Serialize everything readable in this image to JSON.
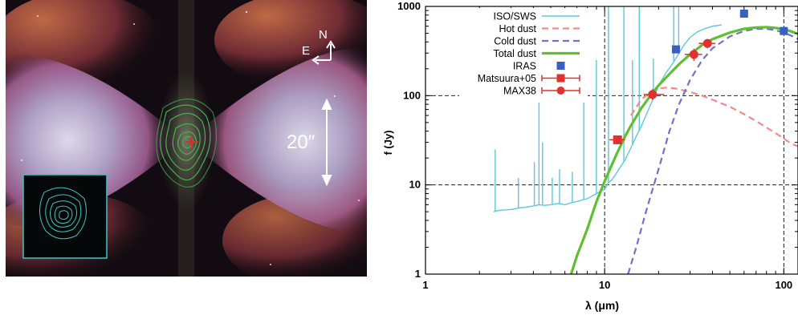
{
  "image_panel": {
    "compass_north": "N",
    "compass_east": "E",
    "scale_bar_label": "20″",
    "colors": {
      "contours": "#3fb64a",
      "inset_contours": "#3cc6c6",
      "center_marker": "#e02a2a"
    }
  },
  "chart_data": {
    "type": "scatter",
    "xlabel": "λ (μm)",
    "ylabel": "f (Jy)",
    "xscale": "log",
    "yscale": "log",
    "xlim": [
      1,
      120
    ],
    "ylim": [
      1,
      1000
    ],
    "xticks": [
      1,
      10,
      100
    ],
    "xtick_labels": [
      "1",
      "10",
      "100"
    ],
    "yticks": [
      1,
      10,
      100,
      1000
    ],
    "ytick_labels": [
      "1",
      "10",
      "100",
      "1000"
    ],
    "grid": true,
    "legend_position": "top-left",
    "series": [
      {
        "name": "ISO/SWS",
        "style": "line",
        "color": "#5bc8dc",
        "x": [
          2.4,
          2.6,
          3.0,
          3.3,
          3.6,
          4.0,
          4.3,
          4.6,
          5.0,
          5.5,
          6.0,
          6.5,
          7.0,
          7.5,
          8.0,
          8.5,
          9.0,
          9.5,
          10.0,
          10.5,
          11.0,
          11.5,
          12.0,
          13.0,
          14.0,
          15.0,
          16.0,
          17.0,
          18.0,
          19.0,
          20.0,
          22.0,
          24.0,
          26.0,
          28.0,
          30.0,
          33.0,
          36.0,
          40.0,
          45.0
        ],
        "y": [
          5.0,
          5.2,
          5.3,
          5.5,
          5.6,
          5.8,
          6.0,
          5.9,
          6.0,
          6.2,
          6.0,
          6.3,
          6.5,
          6.8,
          7.0,
          7.5,
          8.0,
          8.5,
          9.0,
          10.5,
          11.5,
          13.0,
          15.0,
          19.0,
          26.0,
          35.0,
          45.0,
          60.0,
          78.0,
          100.0,
          130.0,
          180.0,
          230.0,
          300.0,
          380.0,
          450.0,
          520.0,
          560.0,
          600.0,
          620.0
        ],
        "spikes": [
          {
            "x": 2.45,
            "y": 25
          },
          {
            "x": 3.3,
            "y": 12
          },
          {
            "x": 4.05,
            "y": 18
          },
          {
            "x": 4.3,
            "y": 150
          },
          {
            "x": 4.5,
            "y": 30
          },
          {
            "x": 5.1,
            "y": 12
          },
          {
            "x": 5.6,
            "y": 15
          },
          {
            "x": 6.6,
            "y": 14
          },
          {
            "x": 7.65,
            "y": 150
          },
          {
            "x": 8.99,
            "y": 250
          },
          {
            "x": 10.5,
            "y": 1000
          },
          {
            "x": 12.8,
            "y": 1000
          },
          {
            "x": 14.3,
            "y": 250
          },
          {
            "x": 15.6,
            "y": 1000
          },
          {
            "x": 18.7,
            "y": 260
          },
          {
            "x": 24.3,
            "y": 1000
          },
          {
            "x": 25.9,
            "y": 1000
          }
        ]
      },
      {
        "name": "Hot dust",
        "style": "dashed",
        "color": "#f08c8c",
        "x": [
          14.0,
          16.0,
          18.0,
          20.0,
          22.0,
          25.0,
          30.0,
          35.0,
          40.0,
          50.0,
          60.0,
          70.0,
          80.0,
          90.0,
          100.0,
          110.0,
          120.0
        ],
        "y": [
          60.0,
          90.0,
          110.0,
          120.0,
          123.0,
          120.0,
          110.0,
          100.0,
          90.0,
          75.0,
          62.0,
          52.0,
          44.0,
          38.0,
          33.0,
          29.0,
          27.0
        ]
      },
      {
        "name": "Cold dust",
        "style": "dashed",
        "color": "#7070d0",
        "x": [
          13.5,
          15.0,
          17.0,
          20.0,
          23.0,
          26.0,
          30.0,
          35.0,
          40.0,
          50.0,
          60.0,
          70.0,
          80.0,
          90.0,
          100.0,
          110.0,
          120.0
        ],
        "y": [
          1.0,
          2.0,
          5.0,
          15.0,
          40.0,
          80.0,
          150.0,
          250.0,
          340.0,
          460.0,
          530.0,
          560.0,
          560.0,
          540.0,
          510.0,
          470.0,
          430.0
        ]
      },
      {
        "name": "Total dust",
        "style": "line",
        "color": "#5fbf30",
        "x": [
          6.5,
          7.0,
          8.0,
          9.0,
          10.0,
          11.0,
          12.0,
          13.0,
          14.0,
          16.0,
          18.0,
          20.0,
          23.0,
          26.0,
          30.0,
          35.0,
          40.0,
          50.0,
          60.0,
          70.0,
          80.0,
          90.0,
          100.0,
          110.0,
          120.0
        ],
        "y": [
          1.0,
          1.6,
          3.2,
          6.5,
          11.0,
          17.0,
          25.0,
          35.0,
          46.0,
          72.0,
          100.0,
          130.0,
          175.0,
          225.0,
          290.0,
          370.0,
          430.0,
          510.0,
          560.0,
          580.0,
          585.0,
          575.0,
          555.0,
          525.0,
          490.0
        ]
      },
      {
        "name": "IRAS",
        "style": "square",
        "color": "#3b5fc0",
        "x": [
          25,
          60,
          100
        ],
        "y": [
          330,
          830,
          530
        ]
      },
      {
        "name": "Matsuura+05",
        "style": "square-errorbar",
        "color": "#e03030",
        "x": [
          11.8
        ],
        "y": [
          32
        ],
        "xerr": [
          [
            10.6,
            13.0
          ]
        ]
      },
      {
        "name": "MAX38",
        "style": "circle-errorbar",
        "color": "#e03030",
        "x": [
          18.5,
          31.5,
          37.5
        ],
        "y": [
          103,
          290,
          385
        ],
        "xerr": [
          [
            16.5,
            21.5
          ],
          [
            28.0,
            35.0
          ],
          [
            33.5,
            41.5
          ]
        ],
        "yerr": [
          [
            90,
            118
          ],
          [
            245,
            335
          ],
          [
            340,
            430
          ]
        ]
      }
    ]
  }
}
